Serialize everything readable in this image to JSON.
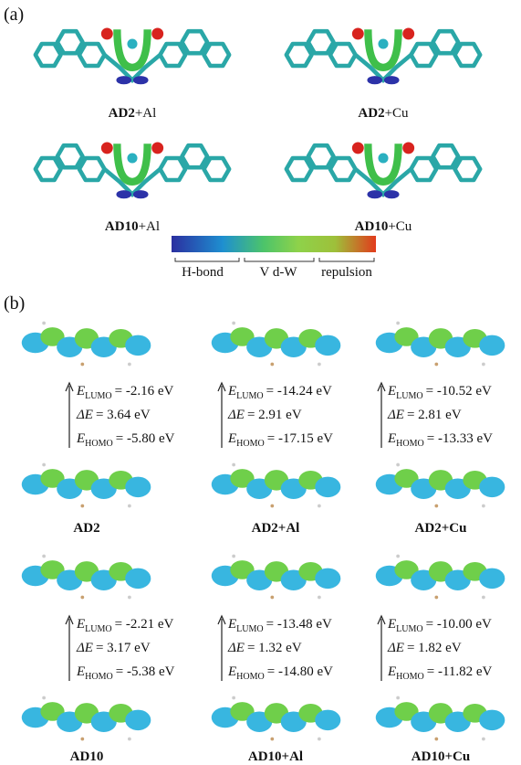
{
  "panel_a": {
    "label": "(a)",
    "structures": [
      {
        "name": "AD2",
        "suffix": "+Al"
      },
      {
        "name": "AD2",
        "suffix": "+Cu"
      },
      {
        "name": "AD10",
        "suffix": "+Al"
      },
      {
        "name": "AD10",
        "suffix": "+Cu"
      }
    ],
    "colorbar": {
      "labels": [
        "H-bond",
        "V d-W",
        "repulsion"
      ]
    }
  },
  "panel_b": {
    "label": "(b)",
    "energy_symbol": "E",
    "lumo_subscript": "LUMO",
    "homo_subscript": "HOMO",
    "gap_symbol": "ΔE",
    "systems": [
      {
        "name": "AD2",
        "lumo": "= -2.16 eV",
        "gap": "= 3.64 eV",
        "homo": "= -5.80 eV"
      },
      {
        "name": "AD2+Al",
        "lumo": "= -14.24 eV",
        "gap": "= 2.91 eV",
        "homo": "= -17.15 eV"
      },
      {
        "name": "AD2+Cu",
        "lumo": "= -10.52 eV",
        "gap": "= 2.81 eV",
        "homo": "= -13.33 eV"
      },
      {
        "name": "AD10",
        "lumo": "= -2.21 eV",
        "gap": "= 3.17 eV",
        "homo": "= -5.38 eV"
      },
      {
        "name": "AD10+Al",
        "lumo": "= -13.48 eV",
        "gap": "= 1.32 eV",
        "homo": "= -14.80 eV"
      },
      {
        "name": "AD10+Cu",
        "lumo": "= -10.00 eV",
        "gap": "= 1.82 eV",
        "homo": "= -11.82 eV"
      }
    ]
  }
}
